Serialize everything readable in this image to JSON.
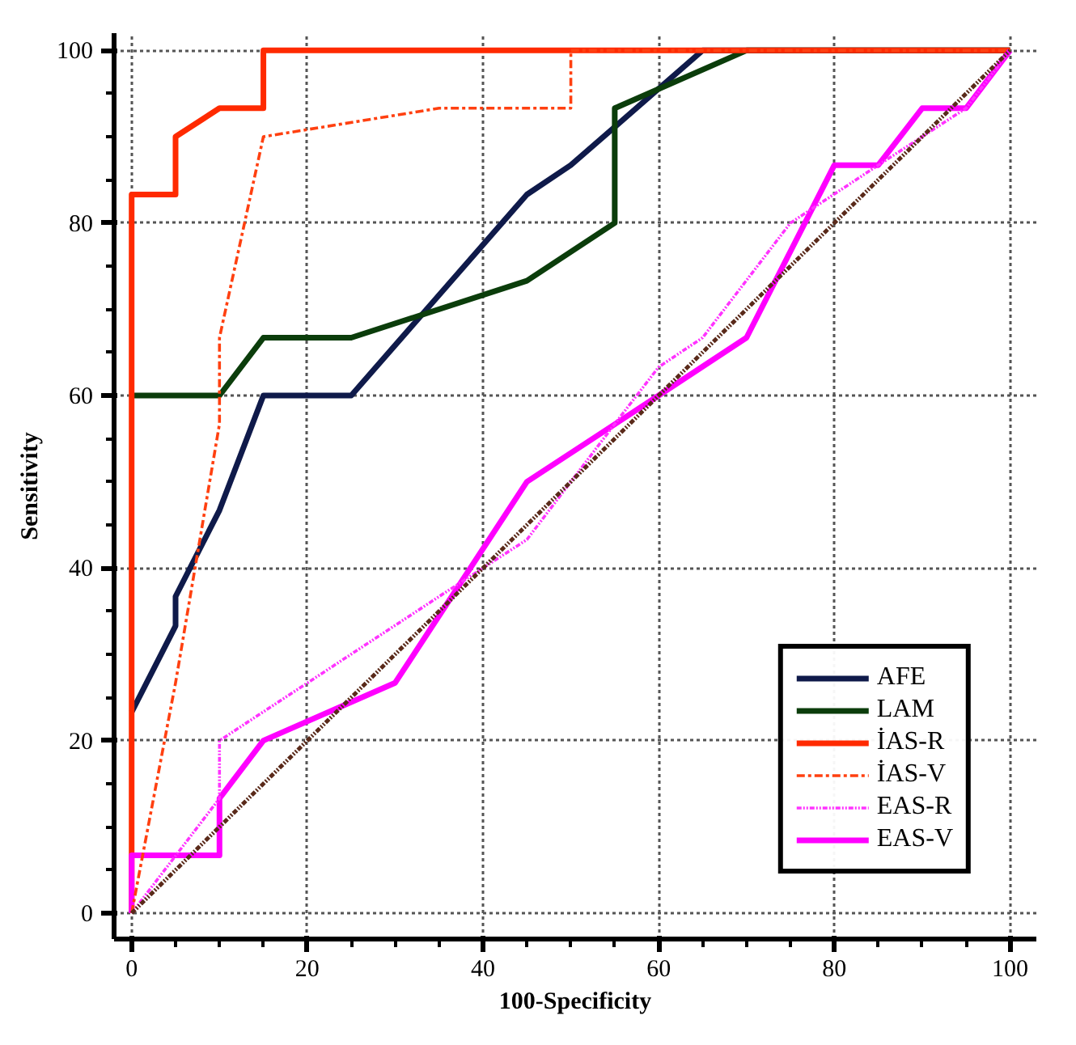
{
  "chart_data": {
    "type": "line",
    "xlabel": "100-Specificity",
    "ylabel": "Sensitivity",
    "xlim": [
      -2,
      103
    ],
    "ylim": [
      -3,
      102
    ],
    "xticks": [
      0,
      20,
      40,
      60,
      80,
      100
    ],
    "yticks": [
      0,
      20,
      40,
      60,
      80,
      100
    ],
    "grid": true,
    "legend": "bottom right",
    "marker": "none",
    "line_style": "solid",
    "series": [
      {
        "name": "AFE",
        "color": "#0f1a4a",
        "x": [
          0,
          5,
          5,
          10,
          15,
          25,
          45,
          50,
          65,
          100
        ],
        "values": [
          23.3,
          33.3,
          36.7,
          46.7,
          60,
          60,
          83.3,
          86.7,
          100,
          100
        ]
      },
      {
        "name": "LAM",
        "color": "#0b3d0b",
        "x": [
          0,
          10,
          15,
          25,
          45,
          55,
          55,
          70,
          100
        ],
        "values": [
          60,
          60,
          66.7,
          66.7,
          73.3,
          80,
          93.3,
          100,
          100
        ]
      },
      {
        "name": "İAS-R",
        "color": "#ff2a00",
        "x": [
          0,
          0,
          5,
          5,
          10,
          15,
          15,
          100
        ],
        "values": [
          0,
          83.3,
          83.3,
          90,
          93.3,
          93.3,
          100,
          100
        ]
      },
      {
        "name": "İAS-V",
        "color": "#ff4010",
        "line_style": "dashed",
        "x": [
          0,
          5,
          10,
          10,
          15,
          35,
          50,
          50,
          100
        ],
        "values": [
          0,
          26.7,
          56.7,
          66.7,
          90,
          93.3,
          93.3,
          100,
          100
        ]
      },
      {
        "name": "EAS-R",
        "color": "#ff33ff",
        "line_style": "dotted",
        "x": [
          0,
          10,
          10,
          35,
          45,
          50,
          55,
          60,
          65,
          75,
          85,
          95,
          100
        ],
        "values": [
          0,
          13.3,
          20,
          36.7,
          43.3,
          50,
          56.7,
          63.3,
          66.7,
          80,
          86.7,
          93.3,
          100
        ]
      },
      {
        "name": "EAS-V",
        "color": "#ff00ff",
        "x": [
          0,
          0,
          10,
          10,
          15,
          30,
          45,
          60,
          70,
          80,
          85,
          90,
          95,
          100
        ],
        "values": [
          0,
          6.7,
          6.7,
          13.3,
          20,
          26.7,
          50,
          60,
          66.7,
          86.7,
          86.7,
          93.3,
          93.3,
          100
        ]
      },
      {
        "color": "#5a2a1a",
        "line_style": "dotted",
        "x": [
          0,
          100
        ],
        "values": [
          0,
          100
        ]
      }
    ]
  }
}
